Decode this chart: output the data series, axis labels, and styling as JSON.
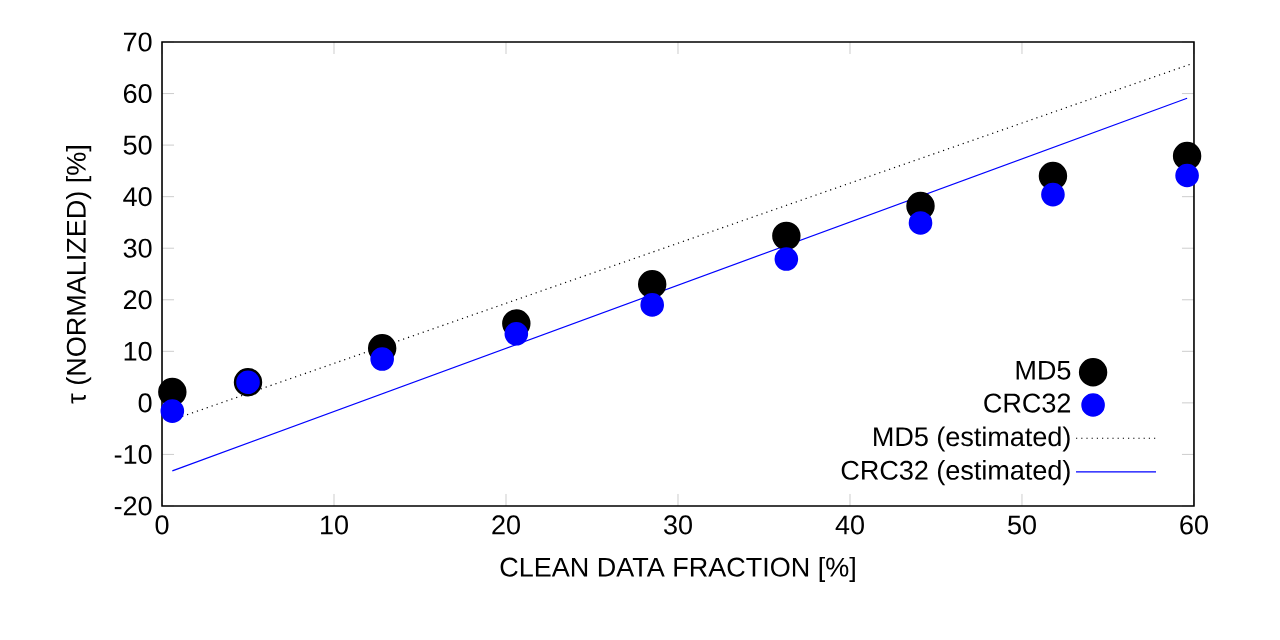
{
  "chart_data": {
    "type": "scatter",
    "xlabel": "CLEAN DATA FRACTION [%]",
    "ylabel": "τ (NORMALIZED) [%]",
    "x": [
      0.6,
      5.0,
      12.8,
      20.6,
      28.5,
      36.3,
      44.1,
      51.8,
      59.6
    ],
    "series": [
      {
        "name": "MD5",
        "color": "#000000",
        "marker": "circle",
        "values": [
          2.1,
          4.0,
          10.6,
          15.4,
          23.0,
          32.4,
          38.2,
          44.0,
          47.9
        ]
      },
      {
        "name": "CRC32",
        "color": "#0000ff",
        "marker": "circle",
        "values": [
          -1.6,
          4.0,
          8.5,
          13.4,
          19.0,
          27.9,
          34.9,
          40.4,
          44.1
        ]
      },
      {
        "name": "MD5 (estimated)",
        "type": "line",
        "line_style": "dotted",
        "marker": "none",
        "color": "#000000",
        "x": [
          0.6,
          59.8
        ],
        "values": [
          -3.3,
          65.7
        ]
      },
      {
        "name": "CRC32 (estimated)",
        "type": "line",
        "line_style": "solid",
        "marker": "none",
        "color": "#0000ff",
        "x": [
          0.6,
          59.6
        ],
        "values": [
          -13.2,
          59.1
        ]
      }
    ],
    "xlim": [
      0,
      60
    ],
    "ylim": [
      -20,
      70
    ],
    "xticks": [
      0,
      10,
      20,
      30,
      40,
      50,
      60
    ],
    "yticks": [
      -20,
      -10,
      0,
      10,
      20,
      30,
      40,
      50,
      60,
      70
    ],
    "grid": false,
    "legend": "bottom right"
  }
}
